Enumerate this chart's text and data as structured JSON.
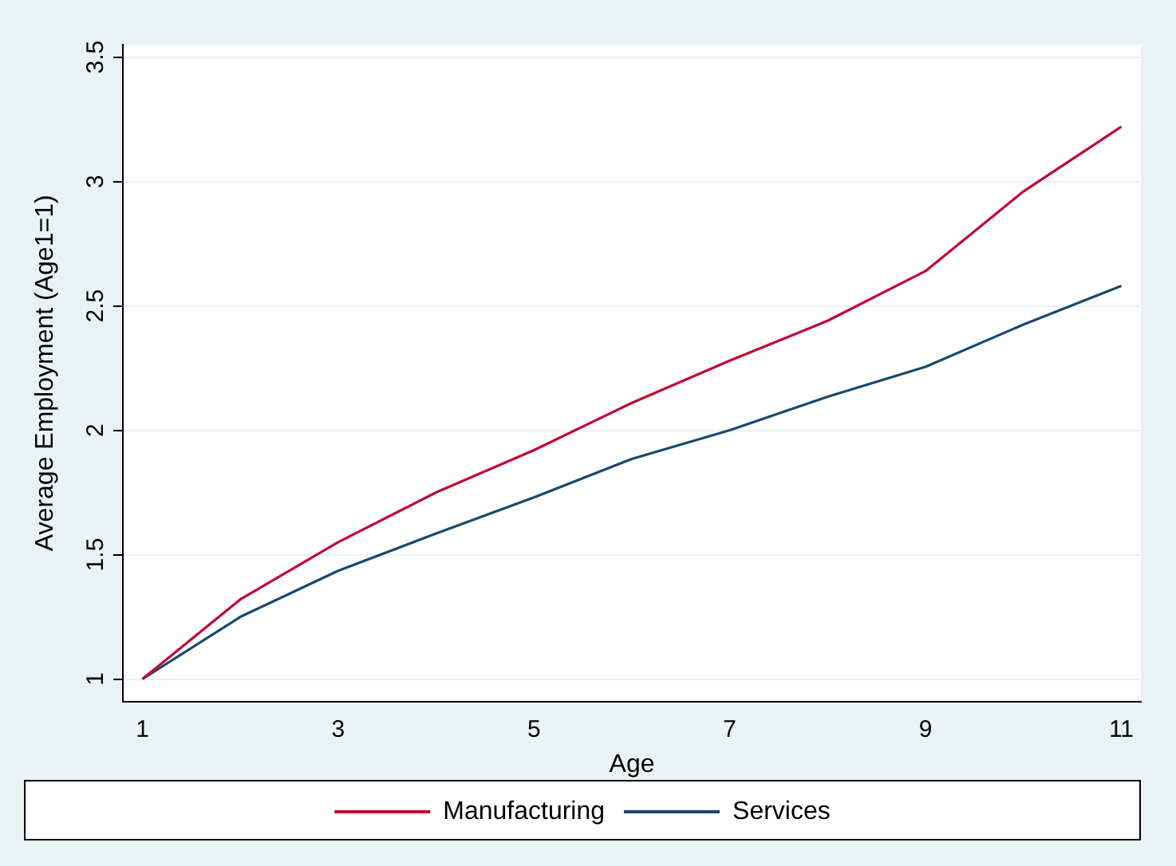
{
  "chart_data": {
    "type": "line",
    "xlabel": "Age",
    "ylabel": "Average Employment (Age1=1)",
    "x": [
      1,
      2,
      3,
      4,
      5,
      6,
      7,
      8,
      9,
      10,
      11
    ],
    "series": [
      {
        "name": "Manufacturing",
        "color": "#c10534",
        "values": [
          1,
          1.32,
          1.55,
          1.75,
          1.92,
          2.11,
          2.28,
          2.44,
          2.64,
          2.96,
          3.22
        ]
      },
      {
        "name": "Services",
        "color": "#1a476f",
        "values": [
          1,
          1.25,
          1.435,
          1.585,
          1.73,
          1.885,
          2.0,
          2.135,
          2.255,
          2.425,
          2.58
        ]
      }
    ],
    "xlim": [
      0.8,
      11.2
    ],
    "xticks": [
      1,
      3,
      5,
      7,
      9,
      11
    ],
    "ylim": [
      0.91,
      3.55
    ],
    "yticks": [
      1,
      1.5,
      2,
      2.5,
      3,
      3.5
    ],
    "grid": "y",
    "legend": "bottom",
    "marker": "none",
    "line_style": "solid"
  }
}
